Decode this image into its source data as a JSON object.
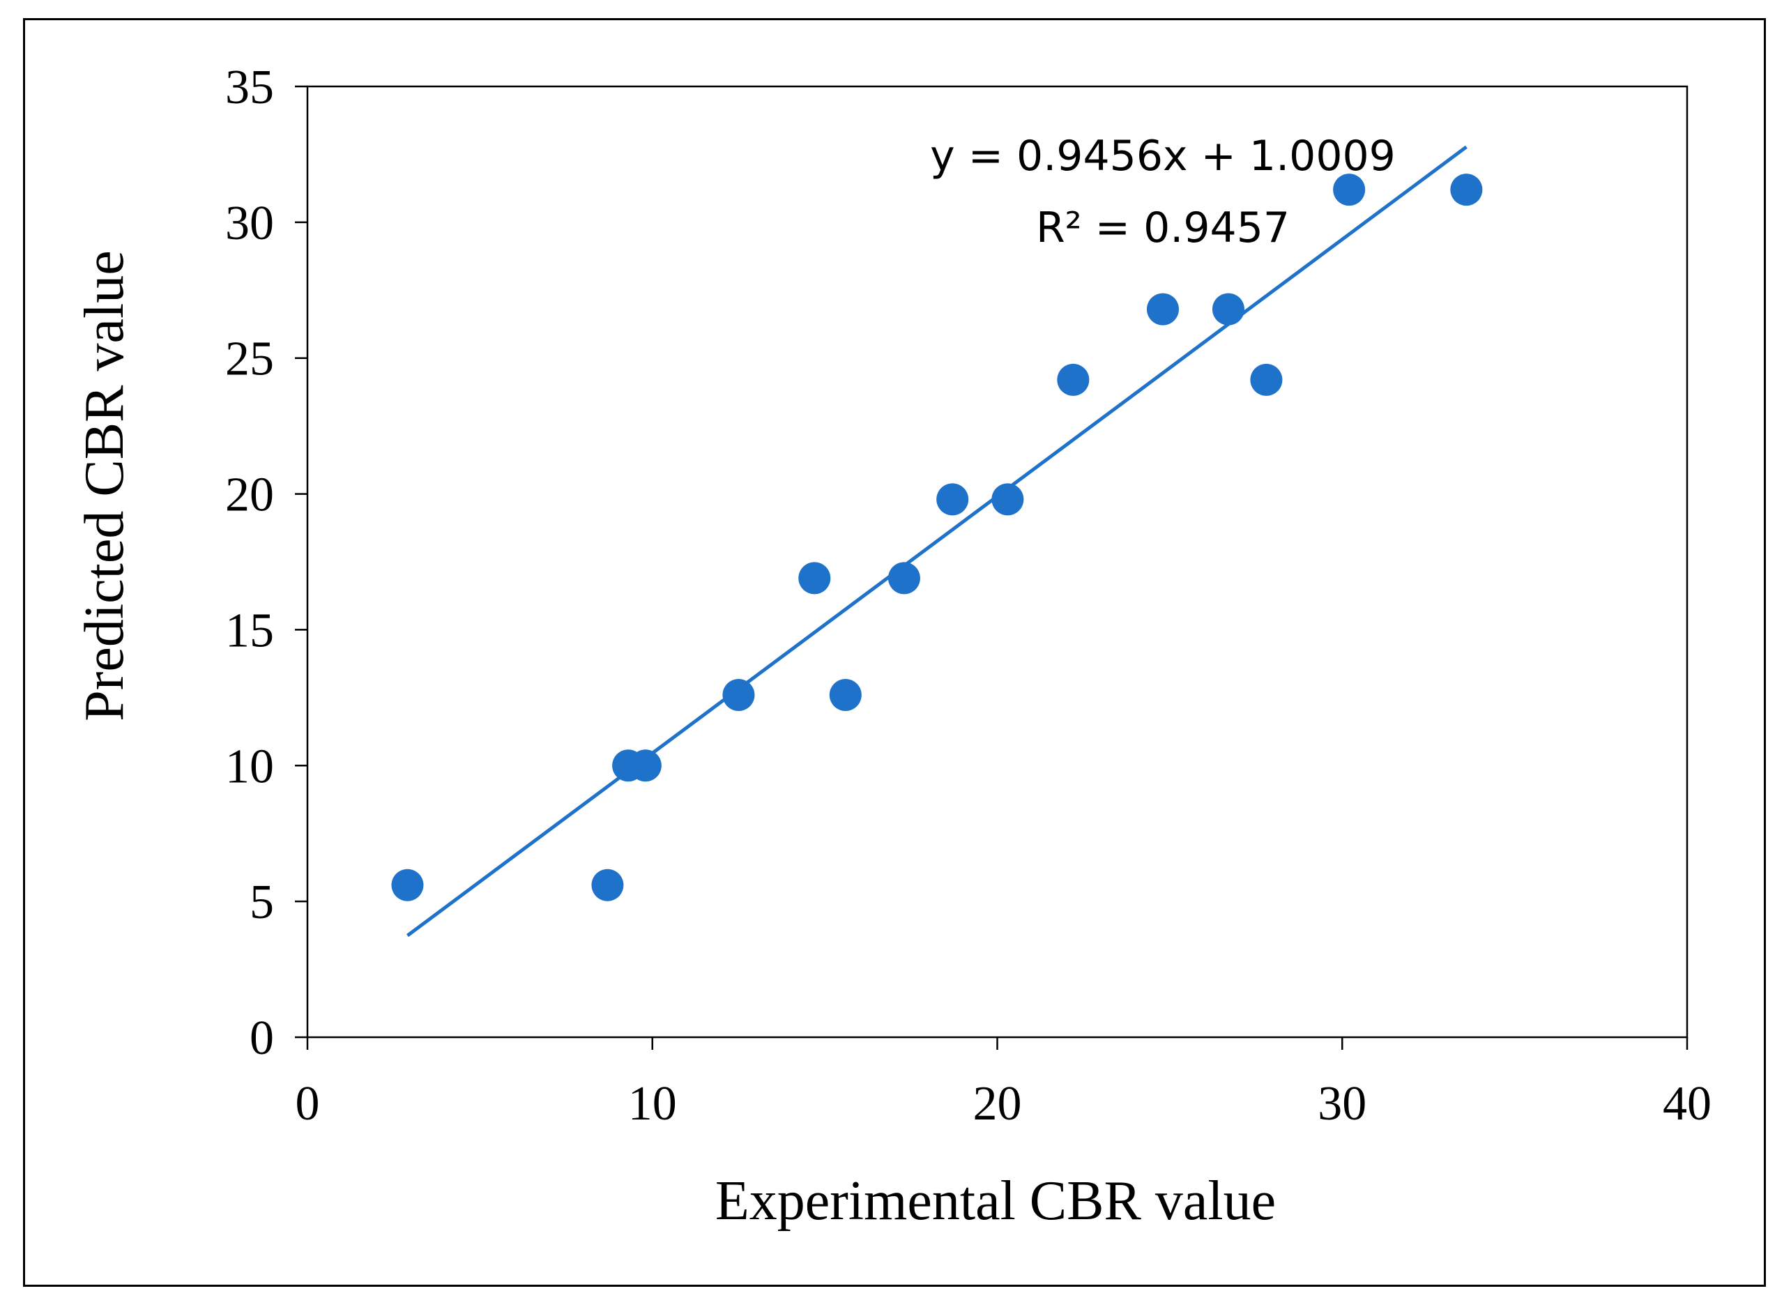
{
  "chart_data": {
    "type": "scatter",
    "title": "",
    "xlabel": "Experimental CBR value",
    "ylabel": "Predicted CBR value",
    "xlim": [
      0,
      40
    ],
    "ylim": [
      0,
      35
    ],
    "xticks": [
      0,
      10,
      20,
      30,
      40
    ],
    "yticks": [
      0,
      5,
      10,
      15,
      20,
      25,
      30,
      35
    ],
    "grid": false,
    "marker_color": "#1f72c9",
    "series": [
      {
        "name": "CBR",
        "points": [
          {
            "x": 2.9,
            "y": 5.6
          },
          {
            "x": 8.7,
            "y": 5.6
          },
          {
            "x": 9.3,
            "y": 10.0
          },
          {
            "x": 9.8,
            "y": 10.0
          },
          {
            "x": 12.5,
            "y": 12.6
          },
          {
            "x": 15.6,
            "y": 12.6
          },
          {
            "x": 14.7,
            "y": 16.9
          },
          {
            "x": 17.3,
            "y": 16.9
          },
          {
            "x": 18.7,
            "y": 19.8
          },
          {
            "x": 20.3,
            "y": 19.8
          },
          {
            "x": 22.2,
            "y": 24.2
          },
          {
            "x": 27.8,
            "y": 24.2
          },
          {
            "x": 24.8,
            "y": 26.8
          },
          {
            "x": 26.7,
            "y": 26.8
          },
          {
            "x": 30.2,
            "y": 31.2
          },
          {
            "x": 33.6,
            "y": 31.2
          }
        ]
      }
    ],
    "trendline": {
      "type": "linear",
      "slope": 0.9456,
      "intercept": 1.0009,
      "x_range": [
        2.9,
        33.6
      ],
      "equation": "y = 0.9456x + 1.0009",
      "r_squared_label": "R² = 0.9457",
      "color": "#1f72c9"
    }
  }
}
